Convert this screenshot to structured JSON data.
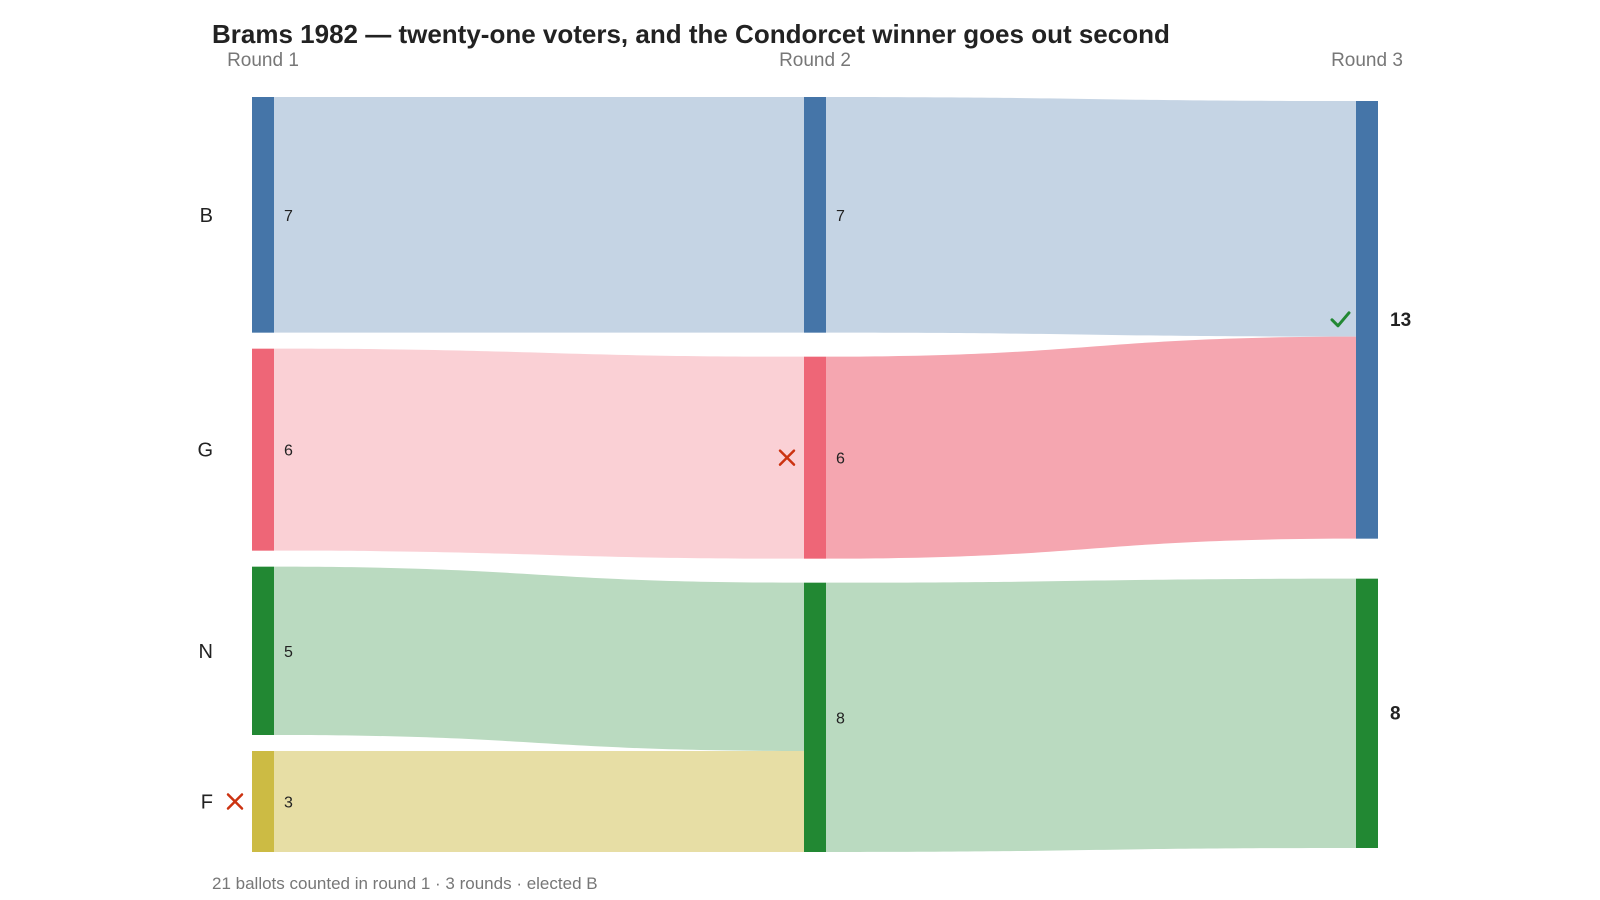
{
  "chart_data": {
    "type": "sankey",
    "title": "Brams 1982 — twenty-one voters, and the Condorcet winner goes out second",
    "rounds": [
      "Round 1",
      "Round 2",
      "Round 3"
    ],
    "candidates": [
      {
        "id": "B",
        "label": "B",
        "color": "#4575A8"
      },
      {
        "id": "G",
        "label": "G",
        "color": "#EE6677"
      },
      {
        "id": "N",
        "label": "N",
        "color": "#228833"
      },
      {
        "id": "F",
        "label": "F",
        "color": "#CCBB44"
      }
    ],
    "tallies": [
      {
        "round": 1,
        "B": 7,
        "G": 6,
        "N": 5,
        "F": 3
      },
      {
        "round": 2,
        "B": 7,
        "G": 6,
        "N": 8
      },
      {
        "round": 3,
        "B": 13,
        "N": 8
      }
    ],
    "flows": [
      {
        "from_round": 1,
        "from": "B",
        "to": "B",
        "value": 7
      },
      {
        "from_round": 1,
        "from": "G",
        "to": "G",
        "value": 6
      },
      {
        "from_round": 1,
        "from": "N",
        "to": "N",
        "value": 5
      },
      {
        "from_round": 1,
        "from": "F",
        "to": "N",
        "value": 3
      },
      {
        "from_round": 2,
        "from": "B",
        "to": "B",
        "value": 7
      },
      {
        "from_round": 2,
        "from": "G",
        "to": "B",
        "value": 6
      },
      {
        "from_round": 2,
        "from": "N",
        "to": "N",
        "value": 8
      }
    ],
    "eliminated": [
      {
        "round": 1,
        "candidate": "F"
      },
      {
        "round": 2,
        "candidate": "G"
      }
    ],
    "winner": {
      "round": 3,
      "candidate": "B"
    },
    "eliminated_color": "#CC3311",
    "winner_mark_color": "#228833"
  },
  "footer": "21 ballots counted in round 1 · 3 rounds · elected B"
}
